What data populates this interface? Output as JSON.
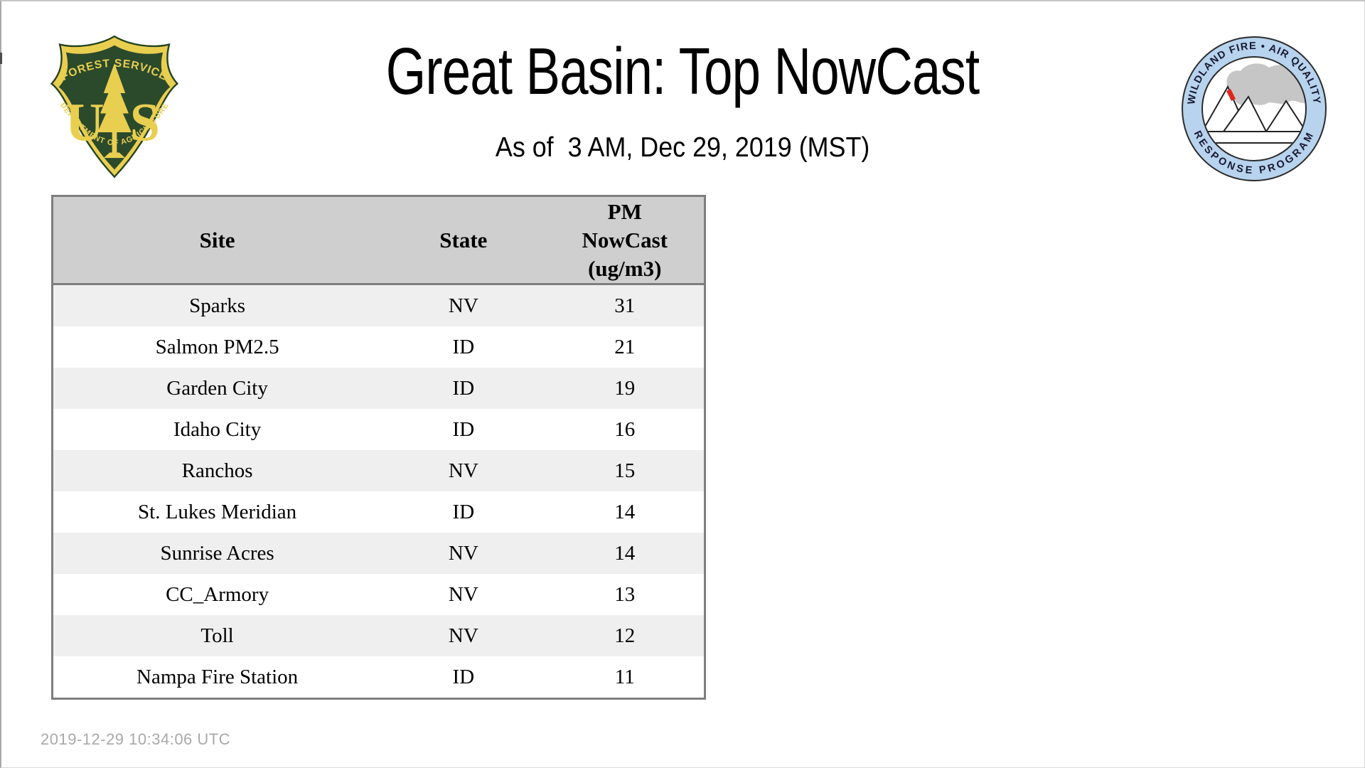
{
  "page": {
    "title": "Great Basin: Top NowCast",
    "subtitle": "As of  3 AM, Dec 29, 2019 (MST)",
    "footer_timestamp": "2019-12-29 10:34:06 UTC",
    "background": "#ffffff"
  },
  "logos": {
    "forest_service": {
      "name": "US Forest Service shield",
      "arc_top": "FOREST SERVICE",
      "arc_bottom": "DEPARTMENT OF AGRICULTURE",
      "monogram_left": "U",
      "monogram_right": "S",
      "green": "#2b4a2c",
      "gold": "#e9cf50"
    },
    "wfaqrp": {
      "name": "Wildland Fire Air Quality Response Program badge",
      "arc_top": "WILDLAND FIRE • AIR QUALITY",
      "arc_bottom": "RESPONSE PROGRAM",
      "ring_blue": "#b7d3ee",
      "smoke_gray": "#c6c6c6",
      "flame_red": "#e0251b",
      "outline": "#2b2b2b"
    }
  },
  "table": {
    "headers": {
      "site": "Site",
      "state": "State",
      "pm": "PM\nNowCast\n(ug/m3)"
    },
    "rows": [
      {
        "site": "Sparks",
        "state": "NV",
        "pm": "31"
      },
      {
        "site": "Salmon PM2.5",
        "state": "ID",
        "pm": "21"
      },
      {
        "site": "Garden City",
        "state": "ID",
        "pm": "19"
      },
      {
        "site": "Idaho City",
        "state": "ID",
        "pm": "16"
      },
      {
        "site": "Ranchos",
        "state": "NV",
        "pm": "15"
      },
      {
        "site": "St. Lukes Meridian",
        "state": "ID",
        "pm": "14"
      },
      {
        "site": "Sunrise Acres",
        "state": "NV",
        "pm": "14"
      },
      {
        "site": "CC_Armory",
        "state": "NV",
        "pm": "13"
      },
      {
        "site": "Toll",
        "state": "NV",
        "pm": "12"
      },
      {
        "site": "Nampa Fire Station",
        "state": "ID",
        "pm": "11"
      }
    ],
    "header_bg": "#cfcfcf",
    "stripe_bg": "#efefef",
    "border_color": "#7e7e7e"
  }
}
